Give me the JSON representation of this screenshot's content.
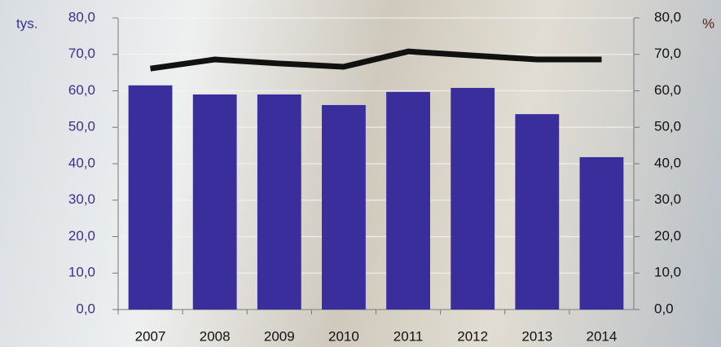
{
  "chart_data": {
    "type": "bar-line",
    "y_label": "tys.",
    "y2_label": "%",
    "categories": [
      "2007",
      "2008",
      "2009",
      "2010",
      "2011",
      "2012",
      "2013",
      "2014"
    ],
    "series": [
      {
        "type": "bar",
        "color": "#3a2d9c",
        "values": [
          61.5,
          59.0,
          59.0,
          56.1,
          59.7,
          60.8,
          53.6,
          41.8
        ]
      },
      {
        "type": "line",
        "axis": "y2",
        "color": "#111111",
        "values": [
          66.1,
          68.6,
          67.5,
          66.6,
          70.8,
          69.7,
          68.6,
          68.6
        ]
      }
    ],
    "ylim": [
      0,
      80
    ],
    "yticks": [
      {
        "value": 0,
        "label": "0,0"
      },
      {
        "value": 10,
        "label": "10,0"
      },
      {
        "value": 20,
        "label": "20,0"
      },
      {
        "value": 30,
        "label": "30,0"
      },
      {
        "value": 40,
        "label": "40,0"
      },
      {
        "value": 50,
        "label": "50,0"
      },
      {
        "value": 60,
        "label": "60,0"
      },
      {
        "value": 70,
        "label": "70,0"
      },
      {
        "value": 80,
        "label": "80,0"
      }
    ],
    "y2lim": [
      0,
      80
    ],
    "y2ticks": [
      {
        "value": 0,
        "label": "0,0"
      },
      {
        "value": 10,
        "label": "10,0"
      },
      {
        "value": 20,
        "label": "20,0"
      },
      {
        "value": 30,
        "label": "30,0"
      },
      {
        "value": 40,
        "label": "40,0"
      },
      {
        "value": 50,
        "label": "50,0"
      },
      {
        "value": 60,
        "label": "60,0"
      },
      {
        "value": 70,
        "label": "70,0"
      },
      {
        "value": 80,
        "label": "80,0"
      }
    ],
    "grid": true
  }
}
